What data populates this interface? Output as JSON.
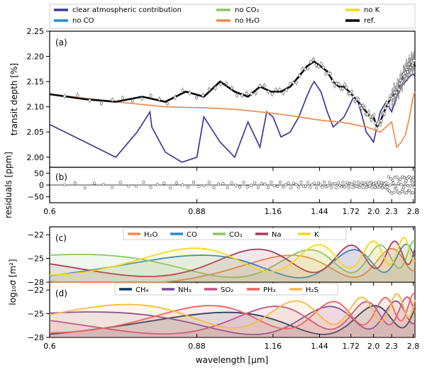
{
  "legend_top": [
    {
      "label": "clear atmospheric contribution",
      "color": "#3a3a9a"
    },
    {
      "label": "no CO",
      "color": "#2a8ad0"
    },
    {
      "label": "no CO₂",
      "color": "#8cc46a"
    },
    {
      "label": "no H₂O",
      "color": "#ee8c48"
    },
    {
      "label": "no K",
      "color": "#f2d820"
    },
    {
      "label": "ref.",
      "color": "#000000"
    }
  ],
  "panel_tags": {
    "a": "(a)",
    "b": "(b)",
    "c": "(c)",
    "d": "(d)"
  },
  "chart_data": [
    {
      "type": "line",
      "panel": "a",
      "ylabel": "transit depth [%]",
      "ylim": [
        1.98,
        2.25
      ],
      "yticks": [
        "2.00",
        "2.05",
        "2.10",
        "2.15",
        "2.20",
        "2.25"
      ],
      "xlim": [
        0.6,
        2.85
      ],
      "xscale": "reciprocal",
      "series": [
        {
          "name": "clear atmospheric contribution",
          "color": "#3a3a9a",
          "x": [
            0.6,
            0.65,
            0.7,
            0.74,
            0.766,
            0.77,
            0.8,
            0.84,
            0.88,
            0.9,
            0.95,
            1.0,
            1.05,
            1.1,
            1.13,
            1.16,
            1.2,
            1.25,
            1.3,
            1.35,
            1.38,
            1.4,
            1.45,
            1.5,
            1.55,
            1.6,
            1.65,
            1.7,
            1.75,
            1.8,
            1.85,
            1.9,
            1.95,
            2.0,
            2.05,
            2.1,
            2.15,
            2.2,
            2.3,
            2.4,
            2.5,
            2.6,
            2.7,
            2.8,
            2.85
          ],
          "y": [
            2.065,
            2.03,
            2.0,
            2.05,
            2.09,
            2.06,
            2.01,
            1.99,
            2.0,
            2.08,
            2.03,
            2.0,
            2.07,
            2.02,
            2.09,
            2.08,
            2.04,
            2.05,
            2.08,
            2.12,
            2.14,
            2.15,
            2.13,
            2.09,
            2.06,
            2.07,
            2.08,
            2.1,
            2.12,
            2.11,
            2.08,
            2.05,
            2.04,
            2.03,
            2.06,
            2.09,
            2.1,
            2.11,
            2.09,
            2.12,
            2.14,
            2.15,
            2.16,
            2.165,
            2.16
          ]
        },
        {
          "name": "no H₂O",
          "color": "#ee8c48",
          "x": [
            0.6,
            0.7,
            0.8,
            0.9,
            1.0,
            1.1,
            1.2,
            1.3,
            1.4,
            1.5,
            1.6,
            1.7,
            1.8,
            1.9,
            2.0,
            2.1,
            2.2,
            2.3,
            2.4,
            2.5,
            2.6,
            2.7,
            2.8,
            2.85
          ],
          "y": [
            2.125,
            2.11,
            2.1,
            2.098,
            2.095,
            2.09,
            2.085,
            2.08,
            2.075,
            2.072,
            2.07,
            2.067,
            2.063,
            2.06,
            2.055,
            2.05,
            2.06,
            2.07,
            2.02,
            2.03,
            2.045,
            2.08,
            2.12,
            2.13
          ]
        },
        {
          "name": "ref.",
          "color": "#000000",
          "x": [
            0.6,
            0.65,
            0.7,
            0.75,
            0.8,
            0.85,
            0.9,
            0.95,
            1.0,
            1.05,
            1.1,
            1.15,
            1.2,
            1.25,
            1.3,
            1.35,
            1.4,
            1.45,
            1.5,
            1.55,
            1.6,
            1.65,
            1.7,
            1.75,
            1.8,
            1.85,
            1.9,
            1.95,
            2.0,
            2.05,
            2.1,
            2.2,
            2.3,
            2.4,
            2.5,
            2.6,
            2.7,
            2.8,
            2.85
          ],
          "y": [
            2.125,
            2.115,
            2.11,
            2.12,
            2.11,
            2.13,
            2.12,
            2.15,
            2.13,
            2.12,
            2.14,
            2.13,
            2.13,
            2.14,
            2.16,
            2.18,
            2.19,
            2.18,
            2.17,
            2.15,
            2.14,
            2.14,
            2.13,
            2.12,
            2.11,
            2.1,
            2.09,
            2.08,
            2.08,
            2.06,
            2.07,
            2.1,
            2.12,
            2.13,
            2.15,
            2.17,
            2.18,
            2.19,
            2.18
          ]
        }
      ]
    },
    {
      "type": "scatter",
      "panel": "b",
      "ylabel": "residuals [ppm]",
      "ylim": [
        -75,
        75
      ],
      "yticks": [
        "−50",
        "0",
        "50"
      ],
      "xlim": [
        0.6,
        2.85
      ],
      "xscale": "reciprocal"
    },
    {
      "type": "area",
      "panel": "c",
      "ylim": [
        -28,
        -21
      ],
      "yticks": [
        "−22",
        "−25",
        "−28"
      ],
      "xlim": [
        0.6,
        2.85
      ],
      "xscale": "reciprocal",
      "series": [
        {
          "name": "H₂O",
          "color": "#ee8c48"
        },
        {
          "name": "CO",
          "color": "#2a8ad0"
        },
        {
          "name": "CO₂",
          "color": "#8cc46a"
        },
        {
          "name": "Na",
          "color": "#a83c5a"
        },
        {
          "name": "K",
          "color": "#f2d820"
        }
      ]
    },
    {
      "type": "area",
      "panel": "d",
      "ylabel": "log₁₀σ [m²]",
      "xlabel": "wavelength [μm]",
      "ylim": [
        -28,
        -21
      ],
      "yticks": [
        "−22",
        "−25",
        "−28"
      ],
      "xlim": [
        0.6,
        2.85
      ],
      "xscale": "reciprocal",
      "xticks": [
        0.6,
        0.88,
        1.16,
        1.44,
        1.72,
        2.0,
        2.3,
        2.8
      ],
      "xtick_labels": [
        "0.6",
        "0.88",
        "1.16",
        "1.44",
        "1.72",
        "2.0",
        "2.3",
        "2.8"
      ],
      "series": [
        {
          "name": "CH₄",
          "color": "#0b3a5a"
        },
        {
          "name": "NH₃",
          "color": "#7a4aa0"
        },
        {
          "name": "SO₂",
          "color": "#c0508a"
        },
        {
          "name": "PH₃",
          "color": "#f06060"
        },
        {
          "name": "H₂S",
          "color": "#f8b840"
        }
      ]
    }
  ]
}
